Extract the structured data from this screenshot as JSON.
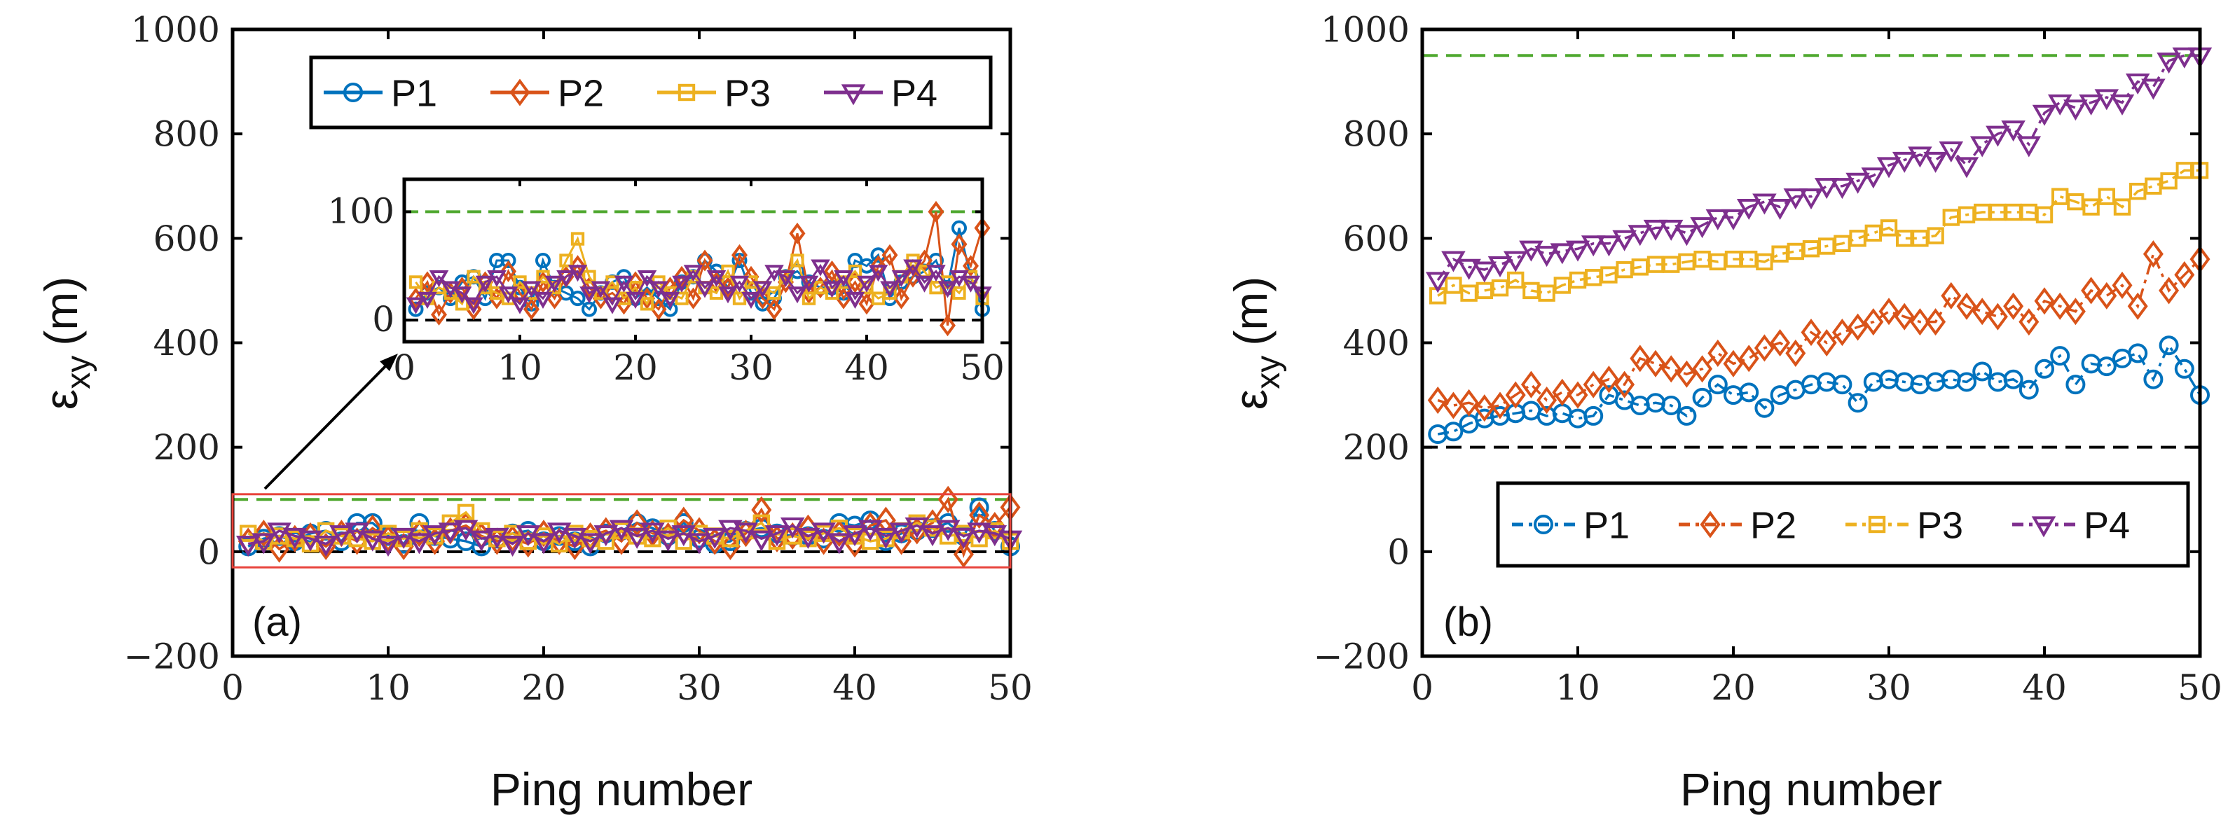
{
  "chart_data": [
    {
      "panel": "(a)",
      "type": "line",
      "xlabel": "Ping number",
      "ylabel": "ε",
      "ylabel_sub": "xy",
      "ylabel_unit": "(m)",
      "xlim": [
        0,
        50
      ],
      "ylim": [
        -200,
        1000
      ],
      "xticks": [
        0,
        10,
        20,
        30,
        40,
        50
      ],
      "yticks": [
        -200,
        0,
        200,
        400,
        600,
        800,
        1000
      ],
      "ytick_labels": [
        "−200",
        "0",
        "200",
        "400",
        "600",
        "800",
        "1000"
      ],
      "reference_lines": [
        {
          "y": 100,
          "color": "#4fa82f",
          "style": "dashed"
        },
        {
          "y": 0,
          "color": "#000000",
          "style": "dashed"
        }
      ],
      "legend": {
        "position": "top",
        "orientation": "horizontal",
        "entries": [
          "P1",
          "P2",
          "P3",
          "P4"
        ]
      },
      "x": [
        1,
        2,
        3,
        4,
        5,
        6,
        7,
        8,
        9,
        10,
        11,
        12,
        13,
        14,
        15,
        16,
        17,
        18,
        19,
        20,
        21,
        22,
        23,
        24,
        25,
        26,
        27,
        28,
        29,
        30,
        31,
        32,
        33,
        34,
        35,
        36,
        37,
        38,
        39,
        40,
        41,
        42,
        43,
        44,
        45,
        46,
        47,
        48,
        49,
        50
      ],
      "series": [
        {
          "name": "P1",
          "color": "#0072BD",
          "marker": "circle",
          "values": [
            10,
            25,
            30,
            20,
            35,
            40,
            20,
            55,
            55,
            30,
            15,
            55,
            30,
            25,
            20,
            10,
            25,
            35,
            40,
            20,
            30,
            20,
            10,
            35,
            40,
            55,
            45,
            30,
            55,
            25,
            15,
            20,
            40,
            45,
            35,
            30,
            30,
            25,
            55,
            50,
            60,
            20,
            35,
            40,
            45,
            55,
            30,
            85,
            40,
            10
          ]
        },
        {
          "name": "P2",
          "color": "#D95319",
          "marker": "diamond",
          "values": [
            20,
            35,
            5,
            25,
            30,
            10,
            35,
            20,
            45,
            25,
            10,
            35,
            20,
            40,
            50,
            30,
            20,
            25,
            15,
            35,
            20,
            10,
            30,
            40,
            20,
            55,
            35,
            30,
            60,
            40,
            20,
            10,
            35,
            80,
            25,
            30,
            45,
            20,
            35,
            15,
            50,
            60,
            20,
            40,
            55,
            100,
            -5,
            70,
            50,
            85
          ]
        },
        {
          "name": "P3",
          "color": "#EDB120",
          "marker": "square",
          "values": [
            35,
            20,
            30,
            25,
            15,
            40,
            30,
            25,
            20,
            35,
            25,
            40,
            30,
            55,
            75,
            40,
            25,
            35,
            20,
            30,
            15,
            35,
            25,
            20,
            40,
            30,
            25,
            45,
            20,
            35,
            30,
            25,
            40,
            55,
            20,
            30,
            25,
            35,
            45,
            30,
            20,
            25,
            40,
            55,
            45,
            30,
            35,
            25,
            40,
            20
          ]
        },
        {
          "name": "P4",
          "color": "#7E2F8E",
          "marker": "triangle-down",
          "values": [
            15,
            20,
            40,
            30,
            25,
            15,
            35,
            40,
            25,
            15,
            30,
            20,
            35,
            40,
            45,
            25,
            30,
            15,
            35,
            20,
            40,
            30,
            20,
            35,
            45,
            30,
            40,
            25,
            35,
            20,
            30,
            45,
            40,
            25,
            35,
            50,
            30,
            40,
            20,
            35,
            45,
            30,
            40,
            50,
            35,
            45,
            30,
            40,
            35,
            25
          ]
        }
      ],
      "inset": {
        "xlim": [
          0,
          50
        ],
        "ylim": [
          -20,
          130
        ],
        "xticks": [
          0,
          10,
          20,
          30,
          40,
          50
        ],
        "yticks": [
          0,
          100
        ],
        "zoom_box_ylim": [
          -30,
          110
        ]
      }
    },
    {
      "panel": "(b)",
      "type": "line",
      "xlabel": "Ping number",
      "ylabel": "ε",
      "ylabel_sub": "xy",
      "ylabel_unit": "(m)",
      "xlim": [
        0,
        50
      ],
      "ylim": [
        -200,
        1000
      ],
      "xticks": [
        0,
        10,
        20,
        30,
        40,
        50
      ],
      "yticks": [
        -200,
        0,
        200,
        400,
        600,
        800,
        1000
      ],
      "ytick_labels": [
        "−200",
        "0",
        "200",
        "400",
        "600",
        "800",
        "1000"
      ],
      "reference_lines": [
        {
          "y": 950,
          "color": "#4fa82f",
          "style": "dashed"
        },
        {
          "y": 200,
          "color": "#000000",
          "style": "dashed"
        }
      ],
      "legend": {
        "position": "bottom-right",
        "orientation": "horizontal",
        "entries": [
          "P1",
          "P2",
          "P3",
          "P4"
        ]
      },
      "x": [
        1,
        2,
        3,
        4,
        5,
        6,
        7,
        8,
        9,
        10,
        11,
        12,
        13,
        14,
        15,
        16,
        17,
        18,
        19,
        20,
        21,
        22,
        23,
        24,
        25,
        26,
        27,
        28,
        29,
        30,
        31,
        32,
        33,
        34,
        35,
        36,
        37,
        38,
        39,
        40,
        41,
        42,
        43,
        44,
        45,
        46,
        47,
        48,
        49,
        50
      ],
      "series": [
        {
          "name": "P1",
          "color": "#0072BD",
          "marker": "circle",
          "values": [
            225,
            230,
            245,
            255,
            260,
            265,
            270,
            260,
            265,
            255,
            260,
            300,
            290,
            280,
            285,
            280,
            260,
            295,
            320,
            300,
            305,
            275,
            300,
            310,
            320,
            325,
            320,
            285,
            325,
            330,
            325,
            320,
            325,
            330,
            325,
            345,
            325,
            330,
            310,
            350,
            375,
            320,
            360,
            355,
            370,
            380,
            330,
            395,
            350,
            300
          ]
        },
        {
          "name": "P2",
          "color": "#D95319",
          "marker": "diamond",
          "values": [
            290,
            280,
            285,
            275,
            280,
            300,
            320,
            290,
            305,
            300,
            320,
            330,
            320,
            370,
            360,
            350,
            340,
            350,
            380,
            360,
            370,
            390,
            400,
            380,
            420,
            400,
            420,
            430,
            440,
            460,
            450,
            440,
            440,
            490,
            470,
            460,
            450,
            470,
            440,
            480,
            470,
            460,
            500,
            490,
            510,
            470,
            570,
            500,
            530,
            560
          ]
        },
        {
          "name": "P3",
          "color": "#EDB120",
          "marker": "square",
          "values": [
            490,
            510,
            495,
            500,
            505,
            520,
            500,
            495,
            510,
            520,
            525,
            530,
            540,
            545,
            550,
            550,
            555,
            560,
            555,
            560,
            560,
            555,
            570,
            575,
            580,
            585,
            590,
            600,
            610,
            620,
            600,
            600,
            605,
            640,
            645,
            650,
            650,
            650,
            650,
            645,
            680,
            670,
            660,
            680,
            660,
            690,
            700,
            710,
            730,
            730
          ]
        },
        {
          "name": "P4",
          "color": "#7E2F8E",
          "marker": "triangle-down",
          "values": [
            520,
            560,
            545,
            540,
            550,
            560,
            580,
            570,
            575,
            580,
            590,
            590,
            600,
            610,
            620,
            620,
            610,
            625,
            640,
            640,
            660,
            670,
            660,
            680,
            680,
            700,
            700,
            710,
            720,
            740,
            750,
            760,
            750,
            770,
            740,
            780,
            800,
            810,
            780,
            840,
            860,
            850,
            860,
            870,
            860,
            900,
            890,
            940,
            950,
            950
          ]
        }
      ]
    }
  ]
}
